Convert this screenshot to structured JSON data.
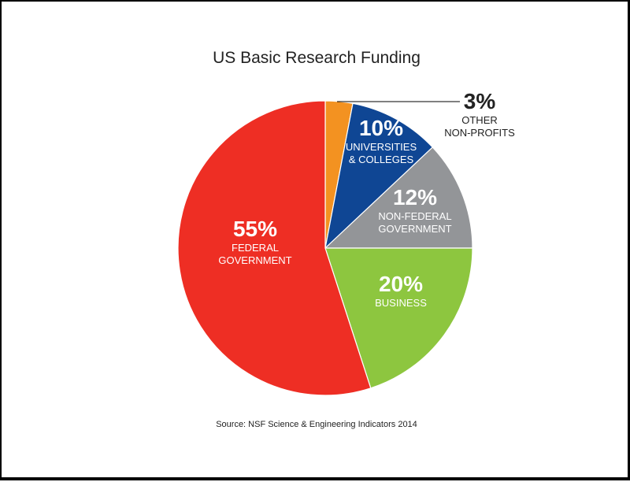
{
  "chart_data": {
    "type": "pie",
    "title": "US Basic Research Funding",
    "source": "Source: NSF Science & Engineering Indicators 2014",
    "slices": [
      {
        "label_lines": [
          "OTHER",
          "NON-PROFITS"
        ],
        "value": 3,
        "display": "3%",
        "color": "#f39221",
        "text_color": "#222222"
      },
      {
        "label_lines": [
          "UNIVERSITIES",
          "& COLLEGES"
        ],
        "value": 10,
        "display": "10%",
        "color": "#0f4694",
        "text_color": "#ffffff"
      },
      {
        "label_lines": [
          "NON-FEDERAL",
          "GOVERNMENT"
        ],
        "value": 12,
        "display": "12%",
        "color": "#939598",
        "text_color": "#ffffff"
      },
      {
        "label_lines": [
          "BUSINESS"
        ],
        "value": 20,
        "display": "20%",
        "color": "#8dc63f",
        "text_color": "#ffffff"
      },
      {
        "label_lines": [
          "FEDERAL",
          "GOVERNMENT"
        ],
        "value": 55,
        "display": "55%",
        "color": "#ee2e24",
        "text_color": "#ffffff"
      }
    ]
  }
}
